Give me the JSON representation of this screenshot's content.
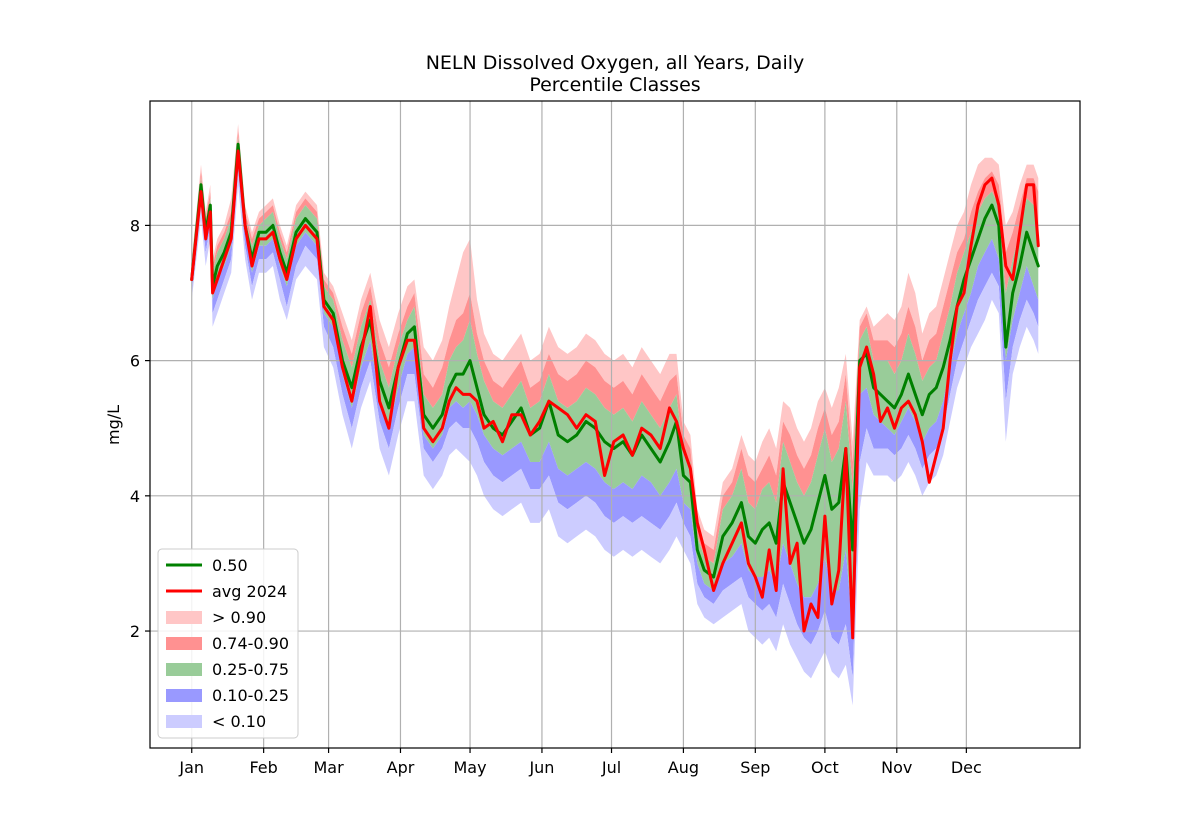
{
  "chart_data": {
    "type": "area",
    "title_line1": "NELN Dissolved Oxygen, all Years, Daily",
    "title_line2": "Percentile Classes",
    "xlabel": "",
    "ylabel": "mg/L",
    "x_tick_labels": [
      "Jan",
      "Feb",
      "Mar",
      "Apr",
      "May",
      "Jun",
      "Jul",
      "Aug",
      "Sep",
      "Oct",
      "Nov",
      "Dec"
    ],
    "x_tick_days": [
      1,
      32,
      60,
      91,
      121,
      152,
      182,
      213,
      244,
      274,
      305,
      335
    ],
    "xlim": [
      -17,
      384
    ],
    "y_ticks": [
      2,
      4,
      6,
      8
    ],
    "y_tick_labels": [
      "2",
      "4",
      "6",
      "8"
    ],
    "ylim": [
      0.27,
      9.84
    ],
    "grid": true,
    "legend_position": "lower-left",
    "legend": [
      {
        "label": "0.50",
        "kind": "line",
        "color": "#008000"
      },
      {
        "label": "avg 2024",
        "kind": "line",
        "color": "#ff0000"
      },
      {
        "label": "> 0.90",
        "kind": "band",
        "color": "#ffc6c6"
      },
      {
        "label": "0.74-0.90",
        "kind": "band",
        "color": "#ff9191"
      },
      {
        "label": "0.25-0.75",
        "kind": "band",
        "color": "#99cc99"
      },
      {
        "label": "0.10-0.25",
        "kind": "band",
        "color": "#9999ff"
      },
      {
        "label": "< 0.10",
        "kind": "band",
        "color": "#ccccff"
      }
    ],
    "day": [
      1,
      5,
      7,
      9,
      10,
      12,
      15,
      18,
      21,
      24,
      27,
      30,
      33,
      36,
      39,
      42,
      46,
      50,
      55,
      58,
      62,
      66,
      70,
      74,
      78,
      82,
      86,
      90,
      94,
      97,
      101,
      105,
      109,
      112,
      115,
      118,
      121,
      124,
      127,
      131,
      135,
      139,
      143,
      147,
      151,
      155,
      159,
      163,
      167,
      171,
      175,
      179,
      183,
      187,
      191,
      195,
      199,
      203,
      207,
      210,
      213,
      216,
      219,
      222,
      226,
      230,
      234,
      238,
      241,
      244,
      247,
      250,
      253,
      256,
      259,
      262,
      265,
      268,
      271,
      274,
      277,
      280,
      283,
      286,
      289,
      292,
      295,
      298,
      301,
      304,
      307,
      310,
      313,
      316,
      319,
      322,
      325,
      328,
      331,
      334,
      337,
      340,
      343,
      346,
      349,
      352,
      355,
      358,
      361,
      364,
      366
    ],
    "series": [
      {
        "name": "0.50",
        "color": "#008000",
        "values": [
          7.2,
          8.6,
          7.9,
          8.3,
          7.1,
          7.4,
          7.6,
          7.9,
          9.2,
          8.0,
          7.5,
          7.9,
          7.9,
          8.0,
          7.6,
          7.3,
          7.9,
          8.1,
          7.9,
          6.9,
          6.7,
          6.0,
          5.6,
          6.2,
          6.6,
          5.7,
          5.3,
          5.9,
          6.4,
          6.5,
          5.2,
          5.0,
          5.2,
          5.6,
          5.8,
          5.8,
          6.0,
          5.6,
          5.2,
          5.0,
          4.9,
          5.1,
          5.3,
          4.9,
          5.0,
          5.4,
          4.9,
          4.8,
          4.9,
          5.1,
          5.0,
          4.8,
          4.7,
          4.8,
          4.6,
          4.9,
          4.7,
          4.5,
          4.8,
          5.1,
          4.3,
          4.2,
          3.2,
          2.9,
          2.8,
          3.4,
          3.6,
          3.9,
          3.4,
          3.3,
          3.5,
          3.6,
          3.3,
          4.2,
          3.9,
          3.6,
          3.3,
          3.5,
          3.9,
          4.3,
          3.8,
          3.9,
          4.7,
          3.2,
          6.0,
          6.1,
          5.6,
          5.5,
          5.4,
          5.3,
          5.5,
          5.8,
          5.5,
          5.2,
          5.5,
          5.6,
          5.9,
          6.3,
          6.8,
          7.2,
          7.5,
          7.8,
          8.1,
          8.3,
          8.0,
          6.2,
          7.0,
          7.4,
          7.9,
          7.6,
          7.4
        ]
      },
      {
        "name": "avg 2024",
        "color": "#ff0000",
        "values": [
          7.2,
          8.5,
          7.8,
          8.2,
          7.0,
          7.2,
          7.5,
          7.8,
          9.1,
          8.0,
          7.4,
          7.8,
          7.8,
          7.9,
          7.5,
          7.2,
          7.8,
          8.0,
          7.8,
          6.8,
          6.6,
          5.9,
          5.4,
          6.1,
          6.8,
          5.4,
          5.0,
          5.9,
          6.3,
          6.3,
          5.0,
          4.8,
          5.0,
          5.4,
          5.6,
          5.5,
          5.5,
          5.4,
          5.0,
          5.1,
          4.8,
          5.2,
          5.2,
          4.9,
          5.1,
          5.4,
          5.3,
          5.2,
          5.0,
          5.2,
          5.1,
          4.3,
          4.8,
          4.9,
          4.6,
          5.0,
          4.9,
          4.7,
          5.3,
          5.1,
          4.7,
          4.4,
          3.6,
          3.2,
          2.6,
          3.0,
          3.3,
          3.6,
          3.0,
          2.8,
          2.5,
          3.2,
          2.6,
          4.4,
          3.0,
          3.3,
          2.0,
          2.4,
          2.2,
          3.7,
          2.4,
          2.9,
          4.7,
          1.9,
          5.9,
          6.2,
          5.8,
          5.1,
          5.3,
          5.0,
          5.3,
          5.4,
          5.2,
          4.8,
          4.2,
          4.6,
          5.0,
          6.0,
          6.8,
          7.0,
          7.7,
          8.3,
          8.6,
          8.7,
          8.3,
          7.4,
          7.2,
          7.9,
          8.6,
          8.6,
          7.7
        ]
      }
    ],
    "bands": {
      "p05": [
        6.9,
        8.1,
        7.4,
        7.8,
        6.5,
        6.7,
        7.0,
        7.3,
        8.6,
        7.5,
        6.9,
        7.3,
        7.3,
        7.4,
        6.9,
        6.6,
        7.2,
        7.4,
        7.2,
        6.2,
        5.9,
        5.2,
        4.7,
        5.3,
        5.7,
        4.7,
        4.3,
        4.9,
        5.4,
        5.4,
        4.3,
        4.1,
        4.3,
        4.6,
        4.7,
        4.6,
        4.5,
        4.3,
        4.0,
        3.8,
        3.7,
        3.8,
        3.9,
        3.6,
        3.6,
        3.8,
        3.4,
        3.3,
        3.4,
        3.5,
        3.4,
        3.2,
        3.1,
        3.2,
        3.1,
        3.2,
        3.1,
        3.0,
        3.2,
        3.4,
        3.2,
        3.0,
        2.4,
        2.2,
        2.1,
        2.2,
        2.3,
        2.4,
        2.0,
        1.9,
        1.8,
        1.9,
        1.7,
        2.1,
        1.8,
        1.6,
        1.4,
        1.3,
        1.5,
        1.7,
        1.4,
        1.3,
        1.5,
        0.9,
        3.8,
        4.5,
        4.3,
        4.3,
        4.3,
        4.2,
        4.3,
        4.5,
        4.3,
        4.0,
        4.2,
        4.3,
        4.6,
        5.1,
        5.6,
        5.9,
        6.2,
        6.4,
        6.6,
        6.9,
        6.7,
        4.8,
        5.8,
        6.2,
        6.5,
        6.3,
        6.1
      ],
      "p10": [
        7.0,
        8.3,
        7.6,
        8.0,
        6.7,
        6.9,
        7.2,
        7.5,
        8.8,
        7.7,
        7.1,
        7.5,
        7.5,
        7.6,
        7.2,
        6.8,
        7.4,
        7.7,
        7.5,
        6.5,
        6.2,
        5.5,
        5.0,
        5.6,
        6.0,
        5.1,
        4.7,
        5.3,
        5.8,
        5.8,
        4.7,
        4.5,
        4.7,
        5.0,
        5.1,
        5.0,
        5.0,
        4.8,
        4.5,
        4.3,
        4.2,
        4.3,
        4.4,
        4.1,
        4.1,
        4.3,
        3.9,
        3.8,
        3.9,
        4.0,
        3.9,
        3.7,
        3.6,
        3.7,
        3.6,
        3.7,
        3.6,
        3.5,
        3.7,
        3.9,
        3.6,
        3.4,
        2.7,
        2.5,
        2.4,
        2.6,
        2.7,
        2.8,
        2.5,
        2.4,
        2.3,
        2.4,
        2.2,
        2.7,
        2.4,
        2.1,
        1.9,
        1.8,
        2.0,
        2.3,
        1.9,
        1.8,
        2.1,
        1.3,
        4.5,
        5.0,
        4.7,
        4.7,
        4.7,
        4.6,
        4.7,
        4.9,
        4.7,
        4.4,
        4.6,
        4.7,
        5.0,
        5.5,
        6.0,
        6.3,
        6.6,
        6.9,
        7.1,
        7.3,
        7.1,
        5.4,
        6.2,
        6.6,
        6.9,
        6.7,
        6.5
      ],
      "p25": [
        7.1,
        8.5,
        7.8,
        8.2,
        6.9,
        7.2,
        7.4,
        7.7,
        9.0,
        7.9,
        7.3,
        7.7,
        7.7,
        7.8,
        7.4,
        7.1,
        7.7,
        7.9,
        7.7,
        6.7,
        6.5,
        5.8,
        5.3,
        5.9,
        6.3,
        5.4,
        5.0,
        5.6,
        6.1,
        6.2,
        4.9,
        4.7,
        4.9,
        5.3,
        5.4,
        5.3,
        5.4,
        5.2,
        4.9,
        4.7,
        4.6,
        4.7,
        4.8,
        4.5,
        4.5,
        4.8,
        4.4,
        4.3,
        4.4,
        4.5,
        4.4,
        4.2,
        4.1,
        4.2,
        4.1,
        4.3,
        4.2,
        4.0,
        4.2,
        4.4,
        3.9,
        3.8,
        3.0,
        2.7,
        2.6,
        3.0,
        3.1,
        3.3,
        2.9,
        2.8,
        2.8,
        2.9,
        2.7,
        3.3,
        3.0,
        2.7,
        2.5,
        2.5,
        2.7,
        3.1,
        2.6,
        2.6,
        3.2,
        2.0,
        5.5,
        5.6,
        5.2,
        5.1,
        5.0,
        4.9,
        5.1,
        5.3,
        5.1,
        4.8,
        5.0,
        5.1,
        5.4,
        5.9,
        6.4,
        6.7,
        7.0,
        7.4,
        7.6,
        7.8,
        7.5,
        6.0,
        6.6,
        7.0,
        7.4,
        7.1,
        6.9
      ],
      "p75": [
        7.3,
        8.7,
        8.0,
        8.4,
        7.3,
        7.6,
        7.8,
        8.1,
        9.3,
        8.1,
        7.7,
        8.0,
        8.1,
        8.2,
        7.8,
        7.5,
        8.1,
        8.3,
        8.1,
        7.1,
        6.9,
        6.3,
        5.9,
        6.5,
        6.9,
        6.0,
        5.6,
        6.2,
        6.6,
        6.8,
        5.5,
        5.3,
        5.5,
        6.0,
        6.2,
        6.3,
        6.6,
        6.1,
        5.7,
        5.4,
        5.3,
        5.5,
        5.7,
        5.3,
        5.4,
        5.8,
        5.4,
        5.3,
        5.4,
        5.6,
        5.5,
        5.3,
        5.2,
        5.3,
        5.1,
        5.4,
        5.2,
        5.0,
        5.3,
        5.5,
        4.6,
        4.5,
        3.4,
        3.1,
        3.0,
        3.8,
        4.0,
        4.4,
        3.9,
        3.8,
        4.1,
        4.2,
        3.9,
        4.8,
        4.5,
        4.2,
        4.0,
        4.2,
        4.6,
        5.0,
        4.5,
        4.7,
        5.4,
        4.1,
        6.3,
        6.5,
        6.0,
        6.0,
        6.0,
        5.8,
        6.0,
        6.4,
        6.1,
        5.7,
        5.9,
        6.0,
        6.4,
        6.8,
        7.3,
        7.6,
        7.9,
        8.2,
        8.4,
        8.5,
        8.3,
        7.0,
        7.5,
        7.9,
        8.4,
        8.3,
        8.0
      ],
      "p90": [
        7.4,
        8.8,
        8.1,
        8.5,
        7.4,
        7.7,
        7.9,
        8.2,
        9.4,
        8.2,
        7.8,
        8.1,
        8.2,
        8.3,
        7.9,
        7.6,
        8.2,
        8.4,
        8.2,
        7.2,
        7.0,
        6.5,
        6.1,
        6.7,
        7.1,
        6.3,
        5.9,
        6.4,
        6.8,
        7.0,
        5.8,
        5.6,
        5.9,
        6.3,
        6.6,
        6.7,
        7.0,
        6.4,
        6.0,
        5.7,
        5.6,
        5.8,
        6.0,
        5.6,
        5.7,
        6.1,
        5.8,
        5.7,
        5.8,
        6.0,
        5.9,
        5.7,
        5.6,
        5.7,
        5.5,
        5.8,
        5.6,
        5.4,
        5.7,
        5.8,
        4.9,
        4.7,
        3.6,
        3.3,
        3.2,
        4.0,
        4.2,
        4.7,
        4.3,
        4.2,
        4.4,
        4.6,
        4.3,
        5.1,
        4.9,
        4.6,
        4.4,
        4.6,
        5.0,
        5.3,
        4.9,
        5.1,
        5.8,
        4.5,
        6.5,
        6.7,
        6.3,
        6.3,
        6.3,
        6.2,
        6.4,
        6.8,
        6.5,
        6.0,
        6.3,
        6.4,
        6.8,
        7.2,
        7.6,
        7.8,
        8.2,
        8.5,
        8.7,
        8.8,
        8.6,
        7.6,
        7.9,
        8.3,
        8.7,
        8.7,
        8.5
      ],
      "p95": [
        7.5,
        8.9,
        8.2,
        8.6,
        7.5,
        7.8,
        8.0,
        8.4,
        9.5,
        8.3,
        7.9,
        8.2,
        8.3,
        8.4,
        8.0,
        7.7,
        8.3,
        8.5,
        8.3,
        7.3,
        7.1,
        6.7,
        6.3,
        6.9,
        7.3,
        6.6,
        6.2,
        6.7,
        7.1,
        7.2,
        6.2,
        6.0,
        6.3,
        6.8,
        7.2,
        7.6,
        7.8,
        6.9,
        6.4,
        6.1,
        6.0,
        6.2,
        6.4,
        6.0,
        6.1,
        6.5,
        6.2,
        6.1,
        6.2,
        6.4,
        6.3,
        6.1,
        6.0,
        6.1,
        5.9,
        6.2,
        6.0,
        5.8,
        6.1,
        6.1,
        5.1,
        4.9,
        3.8,
        3.5,
        3.4,
        4.2,
        4.4,
        4.9,
        4.6,
        4.5,
        4.8,
        5.0,
        4.7,
        5.4,
        5.3,
        5.0,
        4.8,
        5.0,
        5.4,
        5.6,
        5.3,
        5.6,
        6.1,
        4.8,
        6.6,
        6.8,
        6.5,
        6.6,
        6.7,
        6.6,
        6.8,
        7.3,
        7.0,
        6.4,
        6.7,
        6.8,
        7.2,
        7.6,
        8.0,
        8.2,
        8.6,
        8.9,
        9.0,
        9.0,
        8.9,
        8.0,
        8.2,
        8.6,
        8.9,
        8.9,
        8.7
      ]
    }
  }
}
